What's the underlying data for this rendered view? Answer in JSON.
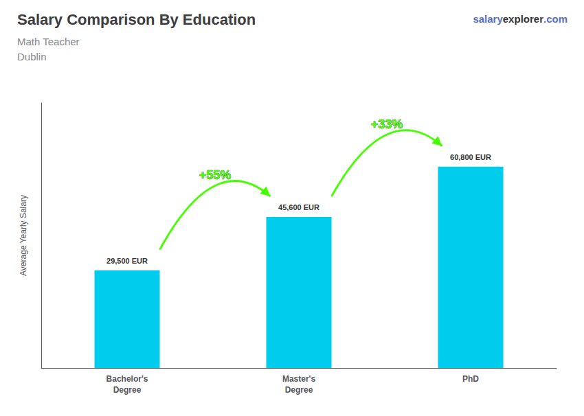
{
  "chart_data": {
    "type": "bar",
    "title": "Salary Comparison By Education",
    "subtitle": [
      "Math Teacher",
      "Dublin"
    ],
    "categories": [
      "Bachelor's\nDegree",
      "Master's\nDegree",
      "PhD"
    ],
    "values": [
      29500,
      45600,
      60800
    ],
    "value_labels": [
      "29,500 EUR",
      "45,600 EUR",
      "60,800 EUR"
    ],
    "data_labels": true,
    "color": "#00ccee",
    "ylabel": "Average Yearly Salary",
    "ylim": [
      0,
      80000
    ],
    "tick_labels": "x",
    "grid": false,
    "annotations": [
      {
        "text": "+55%",
        "from": "Bachelor's\nDegree",
        "to": "Master's\nDegree",
        "color": "#44ff00"
      },
      {
        "text": "+33%",
        "from": "Master's\nDegree",
        "to": "PhD",
        "color": "#44ff00"
      },
      {
        "text": [
          "salary",
          "explorer",
          ".com"
        ]
      }
    ]
  }
}
